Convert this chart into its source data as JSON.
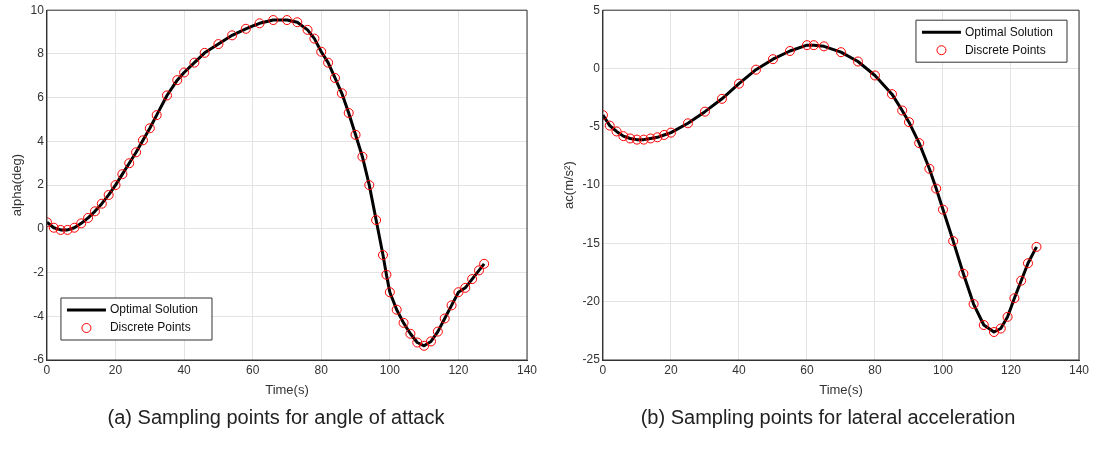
{
  "chart_data": [
    {
      "type": "line",
      "xlabel": "Time(s)",
      "ylabel": "alpha(deg)",
      "xlim": [
        0,
        140
      ],
      "xticks": [
        0,
        20,
        40,
        60,
        80,
        100,
        120,
        140
      ],
      "ylim": [
        -6,
        10
      ],
      "yticks": [
        -6,
        -4,
        -2,
        0,
        2,
        4,
        6,
        8,
        10
      ],
      "grid": true,
      "legend": "bottom left",
      "annotations": [
        "(a) Sampling points for angle of attack"
      ],
      "series": [
        {
          "name": "Optimal Solution",
          "type": "line",
          "color": "#000000",
          "marker": "none",
          "x": [
            0,
            2,
            4,
            6,
            8,
            10,
            12,
            14,
            16,
            18,
            20,
            22,
            24,
            26,
            28,
            30,
            32,
            35,
            38,
            40,
            43,
            46,
            50,
            54,
            58,
            62,
            66,
            70,
            73,
            76,
            78,
            80,
            82,
            84,
            86,
            88,
            90,
            92,
            94,
            96,
            98,
            99,
            100,
            102,
            104,
            106,
            108,
            110,
            112,
            114,
            116,
            118,
            120,
            122,
            124,
            126,
            127.5
          ],
          "values": [
            0.3,
            0.05,
            -0.05,
            -0.05,
            0.05,
            0.25,
            0.5,
            0.8,
            1.15,
            1.55,
            2.0,
            2.5,
            3.0,
            3.5,
            4.05,
            4.6,
            5.2,
            6.1,
            6.8,
            7.15,
            7.6,
            8.05,
            8.45,
            8.85,
            9.15,
            9.4,
            9.55,
            9.55,
            9.45,
            9.1,
            8.7,
            8.1,
            7.6,
            6.9,
            6.2,
            5.3,
            4.3,
            3.3,
            2.0,
            0.4,
            -1.2,
            -2.1,
            -2.9,
            -3.7,
            -4.3,
            -4.8,
            -5.2,
            -5.35,
            -5.15,
            -4.7,
            -4.1,
            -3.5,
            -2.9,
            -2.7,
            -2.3,
            -1.9,
            -1.6
          ]
        },
        {
          "name": "Discrete Points",
          "type": "scatter",
          "color": "#ff0000",
          "marker": "circle",
          "x": [
            0,
            2,
            4,
            6,
            8,
            10,
            12,
            14,
            16,
            18,
            20,
            22,
            24,
            26,
            28,
            30,
            32,
            35,
            38,
            40,
            43,
            46,
            50,
            54,
            58,
            62,
            66,
            70,
            73,
            76,
            78,
            80,
            82,
            84,
            86,
            88,
            90,
            92,
            94,
            96,
            98,
            99,
            100,
            102,
            104,
            106,
            108,
            110,
            112,
            114,
            116,
            118,
            120,
            122,
            124,
            126,
            127.5
          ],
          "values": [
            0.3,
            0.05,
            -0.05,
            -0.05,
            0.05,
            0.25,
            0.5,
            0.8,
            1.15,
            1.55,
            2.0,
            2.5,
            3.0,
            3.5,
            4.05,
            4.6,
            5.2,
            6.1,
            6.8,
            7.15,
            7.6,
            8.05,
            8.45,
            8.85,
            9.15,
            9.4,
            9.55,
            9.55,
            9.45,
            9.1,
            8.7,
            8.1,
            7.6,
            6.9,
            6.2,
            5.3,
            4.3,
            3.3,
            2.0,
            0.4,
            -1.2,
            -2.1,
            -2.9,
            -3.7,
            -4.3,
            -4.8,
            -5.2,
            -5.35,
            -5.15,
            -4.7,
            -4.1,
            -3.5,
            -2.9,
            -2.7,
            -2.3,
            -1.9,
            -1.6
          ]
        }
      ]
    },
    {
      "type": "line",
      "xlabel": "Time(s)",
      "ylabel": "ac(m/s²)",
      "xlim": [
        0,
        140
      ],
      "xticks": [
        0,
        20,
        40,
        60,
        80,
        100,
        120,
        140
      ],
      "ylim": [
        -25,
        5
      ],
      "yticks": [
        -25,
        -20,
        -15,
        -10,
        -5,
        0,
        5
      ],
      "grid": true,
      "legend": "top right",
      "annotations": [
        "(b) Sampling points for lateral acceleration"
      ],
      "series": [
        {
          "name": "Optimal Solution",
          "type": "line",
          "color": "#000000",
          "marker": "none",
          "x": [
            0,
            2,
            4,
            6,
            8,
            10,
            12,
            14,
            16,
            18,
            20,
            25,
            30,
            35,
            40,
            45,
            50,
            55,
            60,
            62,
            65,
            70,
            75,
            80,
            85,
            88,
            90,
            93,
            96,
            98,
            100,
            103,
            106,
            109,
            112,
            115,
            117,
            119,
            121,
            123,
            125,
            127.5
          ],
          "values": [
            -4.0,
            -4.9,
            -5.4,
            -5.8,
            -6.0,
            -6.1,
            -6.1,
            -6.0,
            -5.9,
            -5.7,
            -5.5,
            -4.7,
            -3.7,
            -2.6,
            -1.3,
            -0.1,
            0.8,
            1.5,
            2.0,
            2.0,
            1.9,
            1.4,
            0.6,
            -0.6,
            -2.2,
            -3.6,
            -4.6,
            -6.4,
            -8.6,
            -10.3,
            -12.1,
            -14.8,
            -17.6,
            -20.2,
            -22.0,
            -22.6,
            -22.3,
            -21.3,
            -19.7,
            -18.2,
            -16.7,
            -15.3
          ]
        },
        {
          "name": "Discrete Points",
          "type": "scatter",
          "color": "#ff0000",
          "marker": "circle",
          "x": [
            0,
            2,
            4,
            6,
            8,
            10,
            12,
            14,
            16,
            18,
            20,
            25,
            30,
            35,
            40,
            45,
            50,
            55,
            60,
            62,
            65,
            70,
            75,
            80,
            85,
            88,
            90,
            93,
            96,
            98,
            100,
            103,
            106,
            109,
            112,
            115,
            117,
            119,
            121,
            123,
            125,
            127.5
          ],
          "values": [
            -4.0,
            -4.9,
            -5.4,
            -5.8,
            -6.0,
            -6.1,
            -6.1,
            -6.0,
            -5.9,
            -5.7,
            -5.5,
            -4.7,
            -3.7,
            -2.6,
            -1.3,
            -0.1,
            0.8,
            1.5,
            2.0,
            2.0,
            1.9,
            1.4,
            0.6,
            -0.6,
            -2.2,
            -3.6,
            -4.6,
            -6.4,
            -8.6,
            -10.3,
            -12.1,
            -14.8,
            -17.6,
            -20.2,
            -22.0,
            -22.6,
            -22.3,
            -21.3,
            -19.7,
            -18.2,
            -16.7,
            -15.3
          ]
        }
      ]
    }
  ]
}
